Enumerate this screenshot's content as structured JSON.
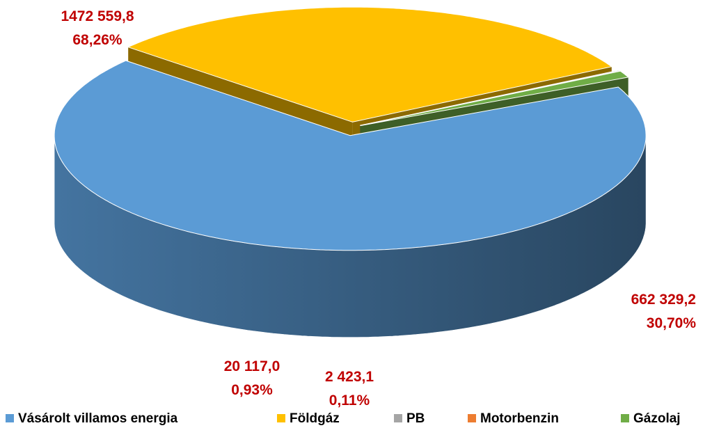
{
  "chart_data": {
    "type": "pie",
    "categories": [
      "Vásárolt villamos energia",
      "Földgáz",
      "PB",
      "Motorbenzin",
      "Gázolaj"
    ],
    "values": [
      1472559.8,
      662329.2,
      2423.1,
      300,
      20117.0
    ],
    "value_labels": [
      "1472 559,8",
      "662 329,2",
      "2 423,1",
      null,
      "20 117,0"
    ],
    "percents": [
      68.26,
      30.7,
      0.11,
      0.01,
      0.93
    ],
    "percent_labels": [
      "68,26%",
      "30,70%",
      "0,11%",
      null,
      "0,93%"
    ],
    "colors": [
      "#5b9bd5",
      "#ffc000",
      "#a5a5a5",
      "#ed7d31",
      "#70ad47"
    ]
  }
}
